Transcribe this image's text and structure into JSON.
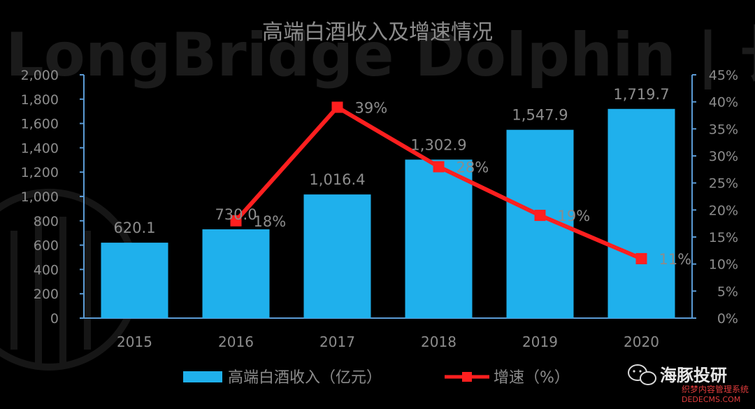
{
  "watermark": {
    "main": "LongBridge Dolphin | 长桥海豚投研",
    "brand": "海豚投研",
    "site_line1": "织梦内容管理系统",
    "site_line2": "DEDECMS.COM"
  },
  "colors": {
    "background": "#000000",
    "bar": "#1fb0ec",
    "line": "#ff1f1f",
    "axis": "#5b9bd5",
    "text": "#8c8c8c"
  },
  "chart_data": {
    "type": "bar",
    "title": "高端白酒收入及增速情况",
    "categories": [
      "2015",
      "2016",
      "2017",
      "2018",
      "2019",
      "2020"
    ],
    "series": [
      {
        "name": "高端白酒收入（亿元）",
        "type": "bar",
        "axis": "left",
        "values": [
          620.1,
          730.0,
          1016.4,
          1302.9,
          1547.9,
          1719.7
        ],
        "labels": [
          "620.1",
          "730.0",
          "1,016.4",
          "1,302.9",
          "1,547.9",
          "1,719.7"
        ]
      },
      {
        "name": "增速（%）",
        "type": "line",
        "axis": "right",
        "values": [
          null,
          18,
          39,
          28,
          19,
          11
        ],
        "labels": [
          "",
          "18%",
          "39%",
          "28%",
          "19%",
          "11%"
        ]
      }
    ],
    "y_left": {
      "lim": [
        0,
        2000
      ],
      "ticks": [
        "0",
        "200",
        "400",
        "600",
        "800",
        "1,000",
        "1,200",
        "1,400",
        "1,600",
        "1,800",
        "2,000"
      ]
    },
    "y_right": {
      "lim": [
        0,
        45
      ],
      "ticks": [
        "0%",
        "5%",
        "10%",
        "15%",
        "20%",
        "25%",
        "30%",
        "35%",
        "40%",
        "45%"
      ]
    },
    "grid": false,
    "legend": "bottom"
  }
}
